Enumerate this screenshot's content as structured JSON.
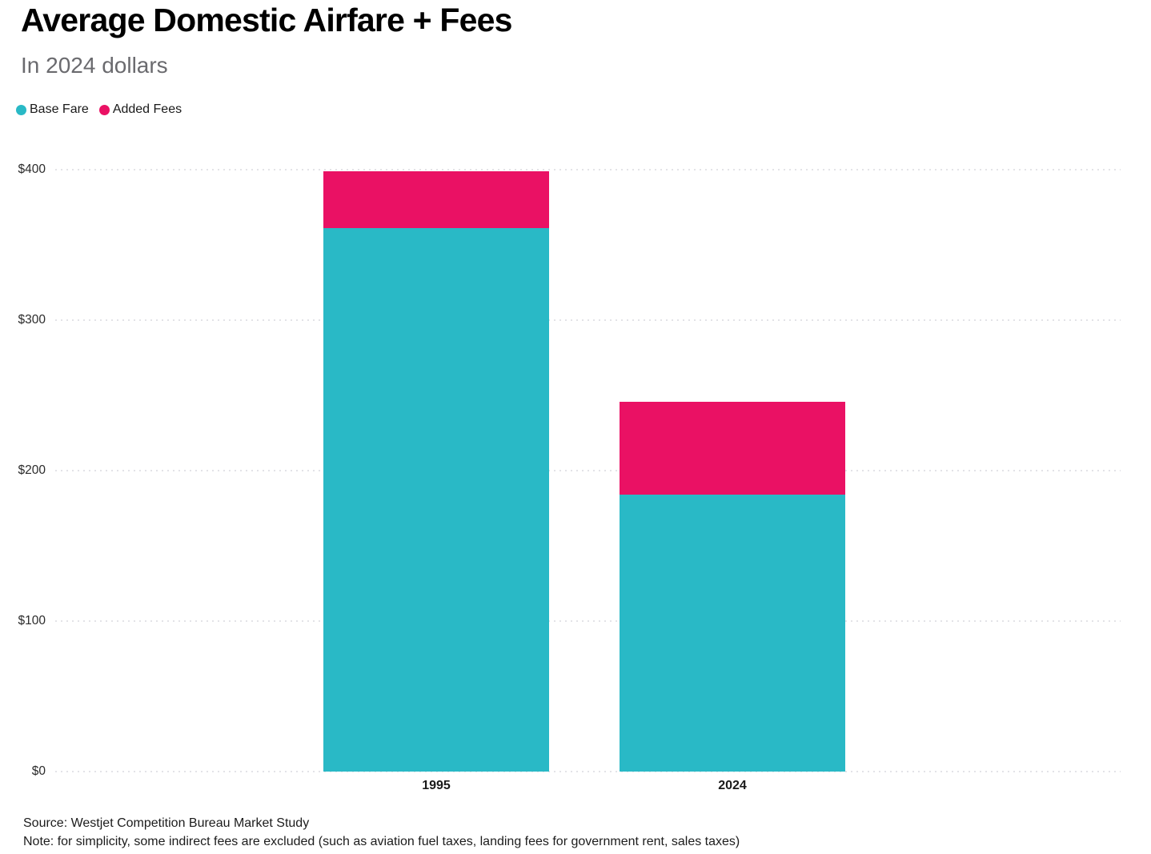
{
  "header": {
    "title": "Average Domestic Airfare + Fees",
    "subtitle": "In 2024 dollars"
  },
  "legend": [
    {
      "label": "Base Fare",
      "color": "#29b9c6"
    },
    {
      "label": "Added Fees",
      "color": "#ea1164"
    }
  ],
  "chart_data": {
    "type": "bar",
    "stacked": true,
    "title": "Average Domestic Airfare + Fees",
    "subtitle": "In 2024 dollars",
    "categories": [
      "1995",
      "2024"
    ],
    "series": [
      {
        "name": "Base Fare",
        "color": "#29b9c6",
        "values": [
          361,
          184
        ]
      },
      {
        "name": "Added Fees",
        "color": "#ea1164",
        "values": [
          38,
          62
        ]
      }
    ],
    "totals": [
      399,
      246
    ],
    "xlabel": "",
    "ylabel": "",
    "ylim": [
      0,
      400
    ],
    "yticks": [
      0,
      100,
      200,
      300,
      400
    ],
    "ytick_labels": [
      "$0",
      "$100",
      "$200",
      "$300",
      "$400"
    ],
    "grid": "horizontal-dotted",
    "legend_position": "top-left"
  },
  "footer": {
    "source": "Source: Westjet Competition Bureau Market Study",
    "note": "Note: for simplicity, some indirect fees are excluded (such as aviation fuel taxes, landing fees for government rent, sales taxes)"
  }
}
